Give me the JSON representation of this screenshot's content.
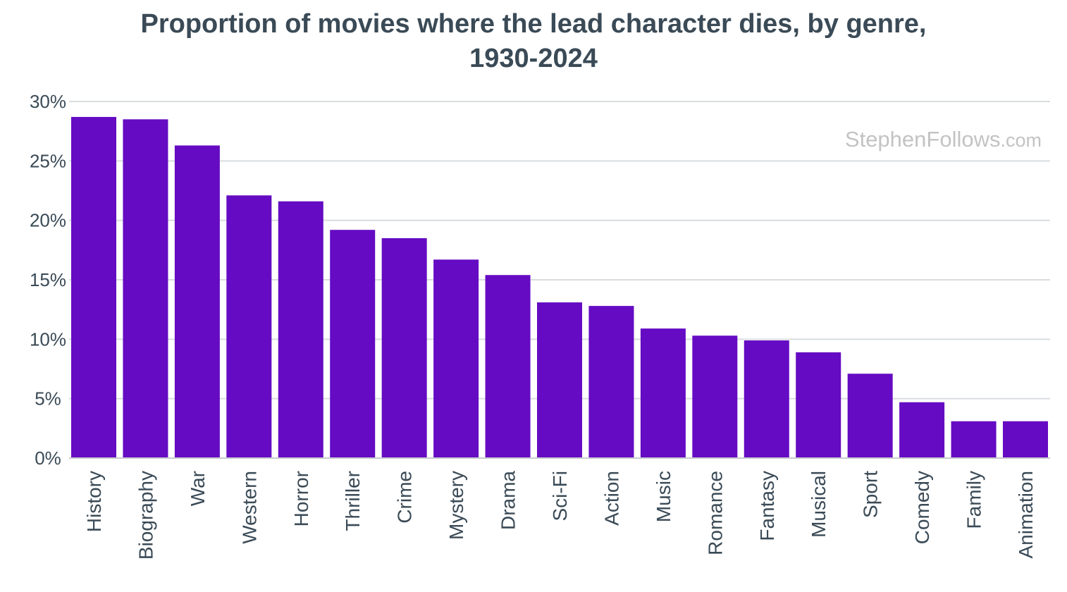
{
  "chart_data": {
    "type": "bar",
    "title_lines": [
      "Proportion of movies where the lead character dies, by genre,",
      "1930-2024"
    ],
    "xlabel": "",
    "ylabel": "",
    "categories": [
      "History",
      "Biography",
      "War",
      "Western",
      "Horror",
      "Thriller",
      "Crime",
      "Mystery",
      "Drama",
      "Sci-Fi",
      "Action",
      "Music",
      "Romance",
      "Fantasy",
      "Musical",
      "Sport",
      "Comedy",
      "Family",
      "Animation"
    ],
    "values": [
      28.7,
      28.5,
      26.3,
      22.1,
      21.6,
      19.2,
      18.5,
      16.7,
      15.4,
      13.1,
      12.8,
      10.9,
      10.3,
      9.9,
      8.9,
      7.1,
      4.7,
      3.1,
      3.1
    ],
    "ylim": [
      0,
      30
    ],
    "yticks": [
      0,
      5,
      10,
      15,
      20,
      25,
      30
    ],
    "ytick_labels": [
      "0%",
      "5%",
      "10%",
      "15%",
      "20%",
      "25%",
      "30%"
    ],
    "grid": true,
    "legend": "none",
    "bar_color": "#650bc3",
    "watermark": {
      "main": "StephenFollows",
      "suffix": ".com"
    }
  }
}
